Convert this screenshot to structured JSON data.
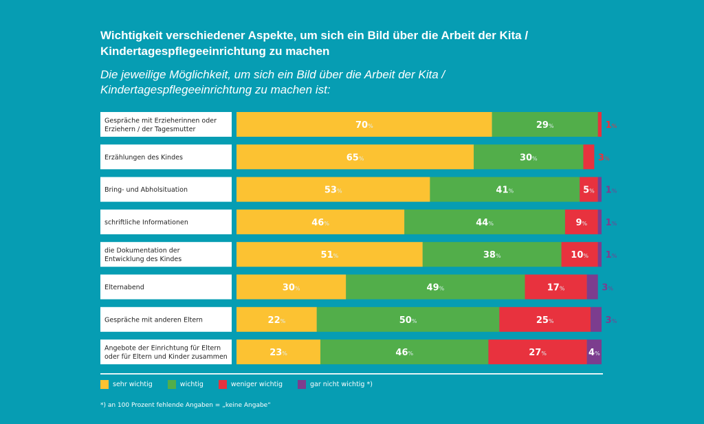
{
  "colors": {
    "background": "#069db3",
    "sehr_wichtig": "#fcc232",
    "wichtig": "#52ae4a",
    "weniger_wichtig": "#e8323e",
    "gar_nicht_wichtig": "#7c3d8e"
  },
  "header": {
    "title": "Wichtigkeit verschiedener Aspekte, um sich ein Bild über die Arbeit der Kita / Kindertagespflegeeinrichtung zu machen",
    "subtitle": "Die jeweilige Möglichkeit, um sich ein Bild über die Arbeit der Kita / Kindertagespflegeeinrichtung zu machen ist:"
  },
  "footnote": "*) an 100 Prozent fehlende Angaben = „keine Angabe“",
  "chart_data": {
    "type": "bar",
    "orientation": "horizontal",
    "stacked": true,
    "title": "Wichtigkeit verschiedener Aspekte, um sich ein Bild über die Arbeit der Kita / Kindertagespflegeeinrichtung zu machen",
    "subtitle": "Die jeweilige Möglichkeit, um sich ein Bild über die Arbeit der Kita / Kindertagespflegeeinrichtung zu machen ist:",
    "unit": "%",
    "xlim": [
      0,
      100
    ],
    "legend_position": "bottom-left",
    "categories": [
      [
        "Gespräche mit Erzieherinnen oder",
        "Erziehern / der Tagesmutter"
      ],
      [
        "Erzählungen des Kindes"
      ],
      [
        "Bring- und Abholsituation"
      ],
      [
        "schriftliche Informationen"
      ],
      [
        "die Dokumentation der",
        "Entwicklung des Kindes"
      ],
      [
        "Elternabend"
      ],
      [
        "Gespräche mit anderen Eltern"
      ],
      [
        "Angebote der Einrichtung für Eltern",
        "oder für Eltern und Kinder zusammen"
      ]
    ],
    "series": [
      {
        "name": "sehr wichtig",
        "color": "#fcc232",
        "values": [
          70,
          65,
          53,
          46,
          51,
          30,
          22,
          23
        ]
      },
      {
        "name": "wichtig",
        "color": "#52ae4a",
        "values": [
          29,
          30,
          41,
          44,
          38,
          49,
          50,
          46
        ]
      },
      {
        "name": "weniger wichtig",
        "color": "#e8323e",
        "values": [
          1,
          3,
          5,
          9,
          10,
          17,
          25,
          27
        ]
      },
      {
        "name": "gar nicht wichtig *)",
        "color": "#7c3d8e",
        "values": [
          0,
          0,
          1,
          1,
          1,
          3,
          3,
          4
        ]
      }
    ]
  }
}
